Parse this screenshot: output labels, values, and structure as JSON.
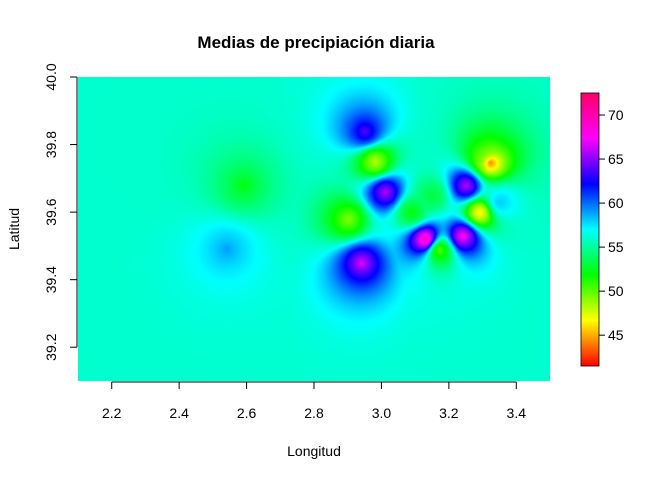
{
  "chart_data": {
    "type": "heatmap",
    "title": "Medias de precipiación diaria",
    "xlabel": "Longitud",
    "ylabel": "Latitud",
    "xlim": [
      2.1,
      3.5
    ],
    "ylim": [
      39.1,
      40.0
    ],
    "x_ticks": [
      "2.2",
      "2.4",
      "2.6",
      "2.8",
      "3.0",
      "3.2",
      "3.4"
    ],
    "y_ticks": [
      "39.2",
      "39.4",
      "39.6",
      "39.8",
      "40.0"
    ],
    "colorbar": {
      "range": [
        41.5,
        72.5
      ],
      "ticks": [
        "45",
        "50",
        "55",
        "60",
        "65",
        "70"
      ],
      "colors": [
        "#ff0000",
        "#ffff00",
        "#00ff00",
        "#00ffff",
        "#0000ff",
        "#ff00ff",
        "#ff0066"
      ]
    },
    "background_value": 56,
    "features": [
      {
        "x": 2.95,
        "y": 39.84,
        "value": 64
      },
      {
        "x": 2.98,
        "y": 39.75,
        "value": 48
      },
      {
        "x": 3.32,
        "y": 39.75,
        "value": 42
      },
      {
        "x": 3.31,
        "y": 39.76,
        "value": 50
      },
      {
        "x": 2.59,
        "y": 39.68,
        "value": 52
      },
      {
        "x": 3.01,
        "y": 39.66,
        "value": 66
      },
      {
        "x": 3.25,
        "y": 39.68,
        "value": 66
      },
      {
        "x": 3.09,
        "y": 39.6,
        "value": 52
      },
      {
        "x": 3.29,
        "y": 39.6,
        "value": 46
      },
      {
        "x": 2.9,
        "y": 39.58,
        "value": 49
      },
      {
        "x": 3.13,
        "y": 39.52,
        "value": 70
      },
      {
        "x": 3.24,
        "y": 39.53,
        "value": 68
      },
      {
        "x": 3.17,
        "y": 39.49,
        "value": 50
      },
      {
        "x": 2.54,
        "y": 39.49,
        "value": 59
      },
      {
        "x": 2.94,
        "y": 39.45,
        "value": 67
      },
      {
        "x": 3.15,
        "y": 39.65,
        "value": 53
      },
      {
        "x": 3.35,
        "y": 39.63,
        "value": 58
      }
    ]
  }
}
